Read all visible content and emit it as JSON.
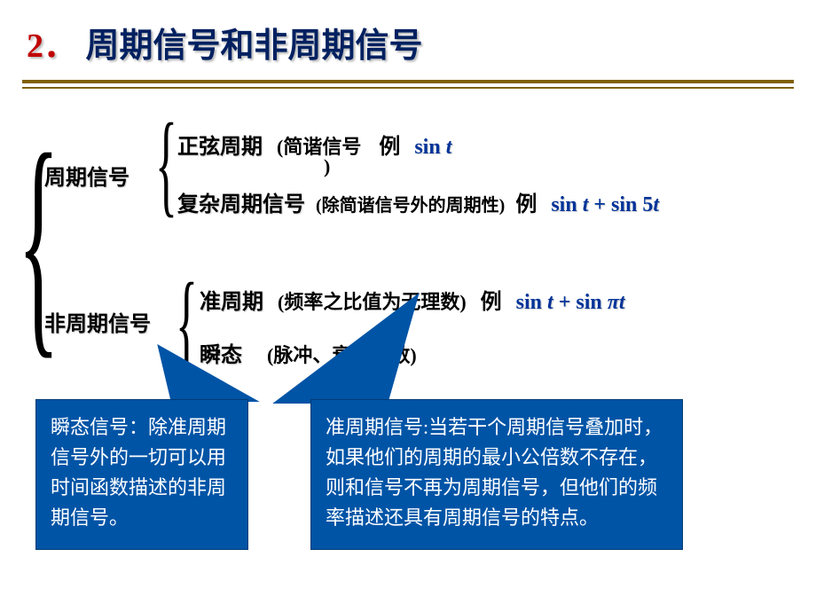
{
  "title": {
    "number": "2．",
    "text": "周期信号和非周期信号"
  },
  "divider": {
    "color": "#806000"
  },
  "tree": {
    "periodic": {
      "label": "周期信号",
      "sine": {
        "label": "正弦周期",
        "note_l": "(简谐信号",
        "note_r": ")",
        "example_label": "例",
        "formula_html": "<span class='upright'>sin </span>t"
      },
      "complex": {
        "label": "复杂周期信号",
        "note": "(除简谐信号外的周期性)",
        "example_label": "例",
        "formula_html": "<span class='upright'>sin </span>t<span class='upright'> + sin 5</span>t"
      }
    },
    "nonperiodic": {
      "label": "非周期信号",
      "quasi": {
        "label": "准周期",
        "note": "(频率之比值为无理数)",
        "example_label": "例",
        "formula_html": "<span class='upright'>sin </span>t<span class='upright'> + sin </span>πt"
      },
      "transient": {
        "label": "瞬态",
        "note": "(脉冲、衰减函数)"
      }
    }
  },
  "callouts": {
    "transient": "瞬态信号：除准周期信号外的一切可以用时间函数描述的非周期信号。",
    "quasi": "准周期信号:当若干个周期信号叠加时，如果他们的周期的最小公倍数不存在，则和信号不再为周期信号，但他们的频率描述还具有周期信号的特点。"
  },
  "style": {
    "background": "#ffffff",
    "title_number_color": "#c00000",
    "title_text_color": "#002060",
    "title_fontsize": 38,
    "body_fontsize": 24,
    "formula_color": "#003399",
    "callout_bg": "#0054a6",
    "callout_text_color": "#ffffff",
    "callout_fontsize": 22
  }
}
